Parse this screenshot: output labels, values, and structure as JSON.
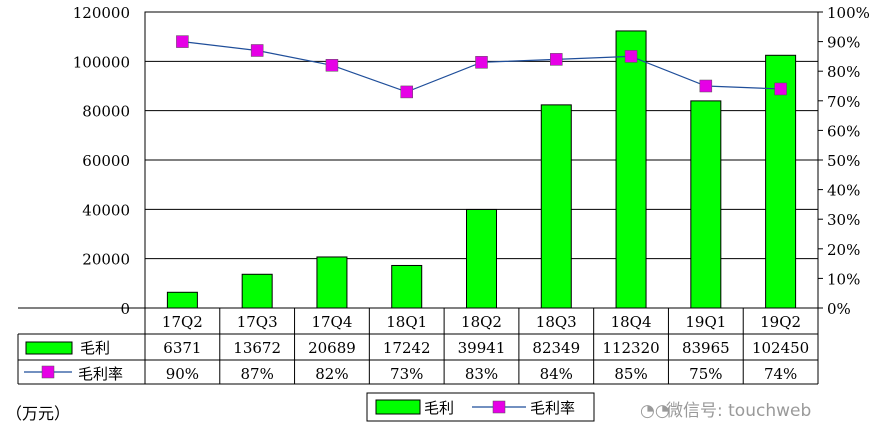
{
  "chart_data": {
    "type": "bar",
    "categories": [
      "17Q2",
      "17Q3",
      "17Q4",
      "18Q1",
      "18Q2",
      "18Q3",
      "18Q4",
      "19Q1",
      "19Q2"
    ],
    "series": [
      {
        "name": "毛利",
        "type": "bar",
        "values": [
          6371,
          13672,
          20689,
          17242,
          39941,
          82349,
          112320,
          83965,
          102450
        ],
        "labels": [
          "6371",
          "13672",
          "20689",
          "17242",
          "39941",
          "82349",
          "112320",
          "83965",
          "102450"
        ],
        "color": "#00ff00"
      },
      {
        "name": "毛利率",
        "type": "line",
        "axis": "right",
        "values": [
          90,
          87,
          82,
          73,
          83,
          84,
          85,
          75,
          74
        ],
        "labels": [
          "90%",
          "87%",
          "82%",
          "73%",
          "83%",
          "84%",
          "85%",
          "75%",
          "74%"
        ],
        "color": "#1f4e9a",
        "marker_color": "#e600e6"
      }
    ],
    "ylim": [
      0,
      120000
    ],
    "yticks": [
      "0",
      "20000",
      "40000",
      "60000",
      "80000",
      "100000",
      "120000"
    ],
    "y2lim": [
      0,
      100
    ],
    "y2ticks": [
      "0%",
      "10%",
      "20%",
      "30%",
      "40%",
      "50%",
      "60%",
      "70%",
      "80%",
      "90%",
      "100%"
    ],
    "grid": true,
    "legend_position": "bottom",
    "data_table": true
  },
  "unit_label": "（万元）",
  "watermark": {
    "icon": "wechat-icon",
    "text": "微信号: touchweb"
  }
}
